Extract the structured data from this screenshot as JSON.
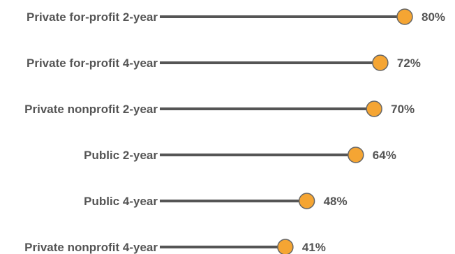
{
  "chart_data": {
    "type": "lollipop",
    "title": "",
    "xlabel": "",
    "ylabel": "",
    "categories": [
      "Private for-profit 2-year",
      "Private for-profit 4-year",
      "Private nonprofit 2-year",
      "Public 2-year",
      "Public 4-year",
      "Private nonprofit 4-year"
    ],
    "values": [
      80,
      72,
      70,
      64,
      48,
      41
    ],
    "value_labels": [
      "80%",
      "72%",
      "70%",
      "64%",
      "48%",
      "41%"
    ],
    "unit": "%",
    "xlim": [
      0,
      100
    ],
    "grid": false,
    "legend": "none",
    "colors": {
      "stem": "#555555",
      "dot_fill": "#F5A533",
      "dot_stroke": "#666666",
      "text": "#555555"
    }
  }
}
